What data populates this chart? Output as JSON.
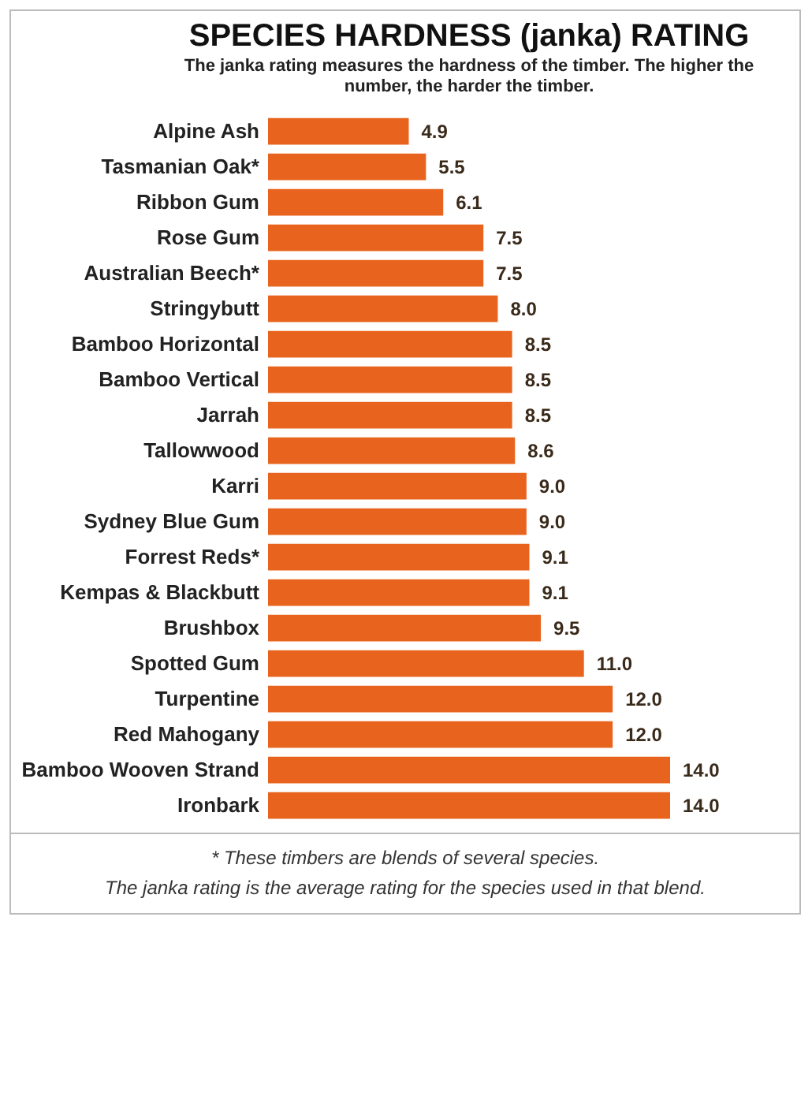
{
  "chart_data": {
    "type": "bar",
    "orientation": "horizontal",
    "title": "SPECIES HARDNESS (janka) RATING",
    "subtitle": "The janka rating measures the hardness of the timber. The higher the number, the harder the timber.",
    "categories": [
      "Alpine Ash",
      "Tasmanian Oak*",
      "Ribbon Gum",
      "Rose Gum",
      "Australian Beech*",
      "Stringybutt",
      "Bamboo Horizontal",
      "Bamboo Vertical",
      "Jarrah",
      "Tallowwood",
      "Karri",
      "Sydney Blue Gum",
      "Forrest Reds*",
      "Kempas & Blackbutt",
      "Brushbox",
      "Spotted Gum",
      "Turpentine",
      "Red Mahogany",
      "Bamboo Wooven Strand",
      "Ironbark"
    ],
    "values": [
      4.9,
      5.5,
      6.1,
      7.5,
      7.5,
      8.0,
      8.5,
      8.5,
      8.5,
      8.6,
      9.0,
      9.0,
      9.1,
      9.1,
      9.5,
      11.0,
      12.0,
      12.0,
      14.0,
      14.0
    ],
    "value_labels": [
      "4.9",
      "5.5",
      "6.1",
      "7.5",
      "7.5",
      "8.0",
      "8.5",
      "8.5",
      "8.5",
      "8.6",
      "9.0",
      "9.0",
      "9.1",
      "9.1",
      "9.5",
      "11.0",
      "12.0",
      "12.0",
      "14.0",
      "14.0"
    ],
    "color": "#e8641e",
    "tick_labels": "y",
    "annotations": [
      "* These timbers are blends of several species.",
      "The janka rating is the average rating for the species used in that blend."
    ]
  }
}
